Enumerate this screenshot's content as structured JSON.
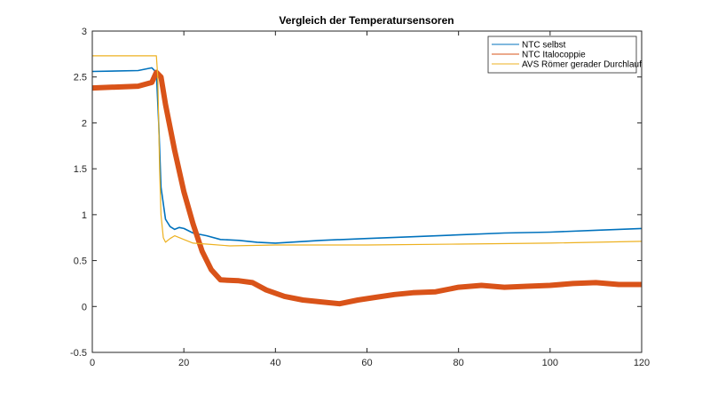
{
  "chart_data": {
    "type": "line",
    "title": "Vergleich der Temperatursensoren",
    "xlabel": "",
    "ylabel": "",
    "xlim": [
      0,
      120
    ],
    "ylim": [
      -0.5,
      3
    ],
    "xticks": [
      0,
      20,
      40,
      60,
      80,
      100,
      120
    ],
    "yticks": [
      -0.5,
      0,
      0.5,
      1,
      1.5,
      2,
      2.5,
      3
    ],
    "xtick_labels": [
      "0",
      "20",
      "40",
      "60",
      "80",
      "100",
      "120"
    ],
    "ytick_labels": [
      "-0.5",
      "0",
      "0.5",
      "1",
      "1.5",
      "2",
      "2.5",
      "3"
    ],
    "grid": false,
    "legend_position": "top-right",
    "series": [
      {
        "name": "NTC selbst",
        "color": "#0072BD",
        "width": 1.6,
        "x": [
          0,
          10,
          13,
          14,
          14.5,
          15,
          16,
          17,
          18,
          19,
          20,
          22,
          25,
          28,
          32,
          36,
          40,
          50,
          60,
          70,
          80,
          90,
          100,
          110,
          120
        ],
        "y": [
          2.56,
          2.57,
          2.6,
          2.55,
          2.0,
          1.3,
          0.95,
          0.87,
          0.84,
          0.86,
          0.85,
          0.8,
          0.77,
          0.73,
          0.72,
          0.7,
          0.69,
          0.72,
          0.74,
          0.76,
          0.78,
          0.8,
          0.81,
          0.83,
          0.85
        ]
      },
      {
        "name": "NTC Italocoppie",
        "color": "#D95319",
        "width": 6,
        "x": [
          0,
          10,
          13,
          14,
          15,
          16,
          18,
          20,
          22,
          24,
          26,
          28,
          32,
          35,
          38,
          42,
          46,
          50,
          54,
          58,
          62,
          66,
          70,
          75,
          80,
          85,
          90,
          95,
          100,
          105,
          110,
          115,
          120
        ],
        "y": [
          2.38,
          2.4,
          2.44,
          2.55,
          2.5,
          2.2,
          1.7,
          1.25,
          0.9,
          0.6,
          0.4,
          0.29,
          0.28,
          0.26,
          0.18,
          0.11,
          0.07,
          0.05,
          0.03,
          0.07,
          0.1,
          0.13,
          0.15,
          0.16,
          0.21,
          0.23,
          0.21,
          0.22,
          0.23,
          0.25,
          0.26,
          0.24,
          0.24
        ]
      },
      {
        "name": "AVS Römer gerader Durchlauf",
        "color": "#EDB120",
        "width": 1.2,
        "x": [
          0,
          14,
          14.3,
          14.7,
          15,
          15.5,
          16,
          17,
          18,
          19,
          20,
          22,
          25,
          30,
          40,
          60,
          80,
          100,
          120
        ],
        "y": [
          2.73,
          2.73,
          2.5,
          1.5,
          1.0,
          0.75,
          0.7,
          0.74,
          0.77,
          0.75,
          0.73,
          0.69,
          0.68,
          0.66,
          0.67,
          0.67,
          0.68,
          0.69,
          0.71
        ]
      }
    ]
  }
}
